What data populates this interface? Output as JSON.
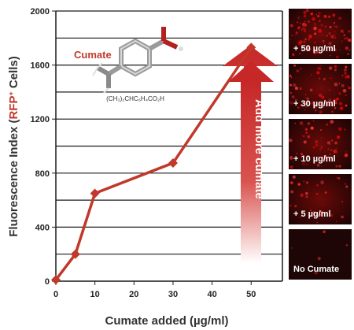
{
  "chart_data": {
    "type": "line",
    "x": [
      0,
      5,
      10,
      30,
      50
    ],
    "values": [
      10,
      200,
      650,
      875,
      1730
    ],
    "xlabel": "Cumate added (µg/ml)",
    "ylabel_prefix": "Fluorescence Index (",
    "ylabel_highlight": "RFP",
    "ylabel_sup": "+",
    "ylabel_suffix": " Cells)",
    "xlim": [
      0,
      58
    ],
    "ylim": [
      0,
      2000
    ],
    "x_ticks": [
      "0",
      "10",
      "20",
      "30",
      "40",
      "50"
    ],
    "y_ticks": [
      "0",
      "400",
      "800",
      "1200",
      "1600",
      "2000"
    ],
    "grid": "horizontal",
    "series_color": "#c0392b",
    "annotations": {
      "arrow_text": "Add more cumate",
      "molecule_label": "Cumate",
      "formula": "(CH₃)₂CHC₆H₄CO₂H"
    },
    "panels": [
      "+ 50 µg/ml",
      "+ 30 µg/ml",
      "+ 10 µg/ml",
      "+ 5 µg/ml",
      "No Cumate"
    ]
  }
}
